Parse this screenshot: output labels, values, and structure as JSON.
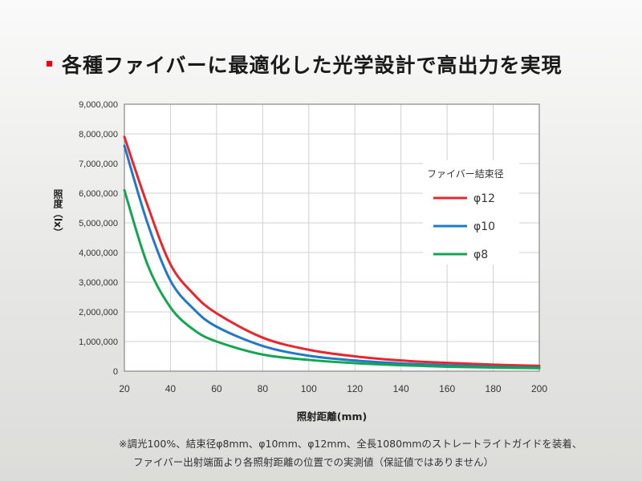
{
  "title": "各種ファイバーに最適化した光学設計で高出力を実現",
  "colors": {
    "accent": "#e60012"
  },
  "notes": [
    "※調光100%、結束径φ8mm、φ10mm、φ12mm、全長1080mmのストレートライトガイドを装着、",
    "ファイバー出射端面より各照射距離の位置での実測値（保証値ではありません）"
  ],
  "chart_data": {
    "type": "line",
    "xlabel": "照射距離(mm)",
    "ylabel": "照度（lx）",
    "xlim": [
      20,
      200
    ],
    "ylim": [
      0,
      9000000
    ],
    "xticks": [
      20,
      40,
      60,
      80,
      100,
      120,
      140,
      160,
      180,
      200
    ],
    "yticks": [
      0,
      1000000,
      2000000,
      3000000,
      4000000,
      5000000,
      6000000,
      7000000,
      8000000,
      9000000
    ],
    "ytick_labels": [
      "0",
      "1,000,000",
      "2,000,000",
      "3,000,000",
      "4,000,000",
      "5,000,000",
      "6,000,000",
      "7,000,000",
      "8,000,000",
      "9,000,000"
    ],
    "grid": true,
    "legend_title": "ファイバー結束径",
    "legend_position": "top-right",
    "x": [
      20,
      30,
      40,
      50,
      60,
      80,
      100,
      120,
      140,
      160,
      180,
      200
    ],
    "series": [
      {
        "name": "φ12",
        "color": "#e8262b",
        "values": [
          7900000,
          5600000,
          3600000,
          2600000,
          1950000,
          1130000,
          720000,
          500000,
          360000,
          280000,
          220000,
          180000
        ]
      },
      {
        "name": "φ10",
        "color": "#1f78c8",
        "values": [
          7600000,
          5000000,
          3050000,
          2100000,
          1500000,
          850000,
          520000,
          360000,
          260000,
          200000,
          150000,
          120000
        ]
      },
      {
        "name": "φ8",
        "color": "#12a650",
        "values": [
          6100000,
          3600000,
          2150000,
          1400000,
          1000000,
          560000,
          380000,
          270000,
          200000,
          150000,
          120000,
          100000
        ]
      }
    ]
  }
}
